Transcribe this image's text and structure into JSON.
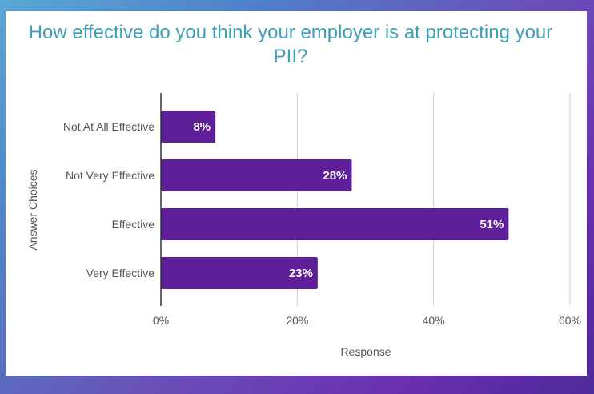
{
  "chart_data": {
    "type": "bar",
    "orientation": "horizontal",
    "title": "How effective do you think your employer is at protecting your PII?",
    "xlabel": "Response",
    "ylabel": "Answer Choices",
    "categories": [
      "Not At All Effective",
      "Not Very Effective",
      "Effective",
      "Very Effective"
    ],
    "values": [
      8,
      28,
      51,
      23
    ],
    "value_labels": [
      "8%",
      "28%",
      "51%",
      "23%"
    ],
    "xlim": [
      0,
      60
    ],
    "x_ticks": [
      "0%",
      "20%",
      "40%",
      "60%"
    ],
    "x_tick_values": [
      0,
      20,
      40,
      60
    ],
    "grid": true,
    "bar_color": "#5e1f99",
    "title_color": "#3ea0b8"
  }
}
